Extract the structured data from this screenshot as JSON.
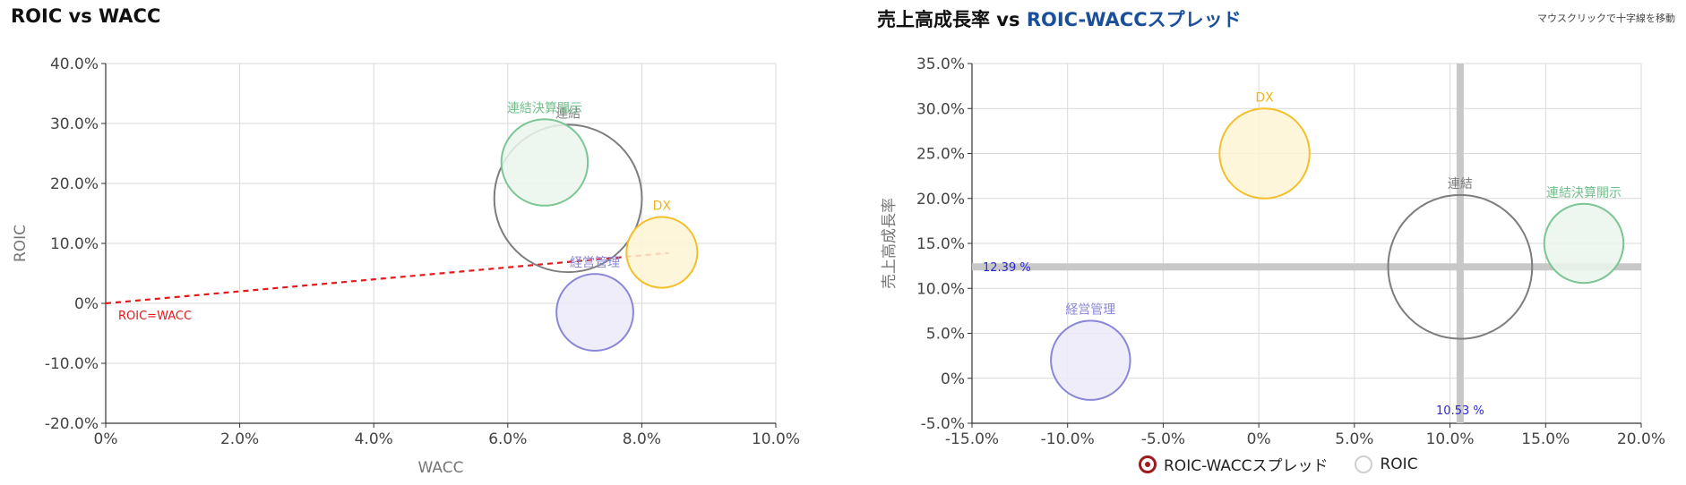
{
  "left": {
    "title": "ROIC vs WACC",
    "chart_data": {
      "type": "scatter",
      "title": "ROIC vs WACC",
      "xlabel": "WACC",
      "ylabel": "ROIC",
      "xlim": [
        0,
        10
      ],
      "ylim": [
        -20,
        40
      ],
      "xticks": [
        0,
        2,
        4,
        6,
        8,
        10
      ],
      "xtick_labels": [
        "0%",
        "2.0%",
        "4.0%",
        "6.0%",
        "8.0%",
        "10.0%"
      ],
      "yticks": [
        -20,
        -10,
        0,
        10,
        20,
        30,
        40
      ],
      "ytick_labels": [
        "-20.0%",
        "-10.0%",
        "0%",
        "10.0%",
        "20.0%",
        "30.0%",
        "40.0%"
      ],
      "grid": true,
      "reference_line": {
        "label": "ROIC=WACC",
        "x": [
          0,
          8.4
        ],
        "y": [
          0,
          8.4
        ],
        "color": "#e31a1c"
      },
      "bubbles": [
        {
          "label": "連結",
          "x": 6.9,
          "y": 17.5,
          "r": 12.3,
          "stroke": "#7d7d7d",
          "fill": "none",
          "label_color": "#7d7d7d"
        },
        {
          "label": "連結決算開示",
          "x": 6.55,
          "y": 23.5,
          "r": 7.2,
          "stroke": "#7cc594",
          "fill": "#eaf6ec",
          "label_color": "#6fbf8a"
        },
        {
          "label": "DX",
          "x": 8.3,
          "y": 8.5,
          "r": 5.9,
          "stroke": "#f3c02c",
          "fill": "#fdf5d3",
          "label_color": "#f0b41c"
        },
        {
          "label": "経営管理",
          "x": 7.3,
          "y": -1.5,
          "r": 6.4,
          "stroke": "#8b87d8",
          "fill": "#eceaf8",
          "label_color": "#8b87d8"
        }
      ]
    }
  },
  "right": {
    "title_main": "売上高成長率 vs ",
    "title_accent": "ROIC-WACCスプレッド",
    "hint": "マウスクリックで十字線を移動",
    "chart_data": {
      "type": "scatter",
      "ylabel": "売上高成長率",
      "xlim": [
        -15,
        20
      ],
      "ylim": [
        -5,
        35
      ],
      "xticks": [
        -15,
        -10,
        -5,
        0,
        5,
        10,
        15,
        20
      ],
      "xtick_labels": [
        "-15.0%",
        "-10.0%",
        "-5.0%",
        "0%",
        "5.0%",
        "10.0%",
        "15.0%",
        "20.0%"
      ],
      "yticks": [
        -5,
        0,
        5,
        10,
        15,
        20,
        25,
        30,
        35
      ],
      "ytick_labels": [
        "-5.0%",
        "0%",
        "5.0%",
        "10.0%",
        "15.0%",
        "20.0%",
        "25.0%",
        "30.0%",
        "35.0%"
      ],
      "grid": true,
      "crosshair": {
        "x": 10.53,
        "y": 12.39,
        "x_label": "10.53 %",
        "y_label": "12.39 %"
      },
      "bubbles": [
        {
          "label": "DX",
          "x": 0.3,
          "y": 25.0,
          "r": 5.0,
          "stroke": "#f3c02c",
          "fill": "#fdf5d3",
          "label_color": "#f0b41c"
        },
        {
          "label": "連結",
          "x": 10.53,
          "y": 12.39,
          "r": 8.0,
          "stroke": "#7d7d7d",
          "fill": "none",
          "label_color": "#7d7d7d"
        },
        {
          "label": "連結決算開示",
          "x": 17.0,
          "y": 15.0,
          "r": 4.4,
          "stroke": "#7cc594",
          "fill": "#eaf6ec",
          "label_color": "#6fbf8a"
        },
        {
          "label": "経営管理",
          "x": -8.8,
          "y": 2.0,
          "r": 4.4,
          "stroke": "#8b87d8",
          "fill": "#eceaf8",
          "label_color": "#8b87d8"
        }
      ]
    },
    "legend": [
      {
        "label": "ROIC-WACCスプレッド",
        "color": "#a01b1b"
      },
      {
        "label": "ROIC",
        "color": "#cfcfcf"
      }
    ]
  }
}
